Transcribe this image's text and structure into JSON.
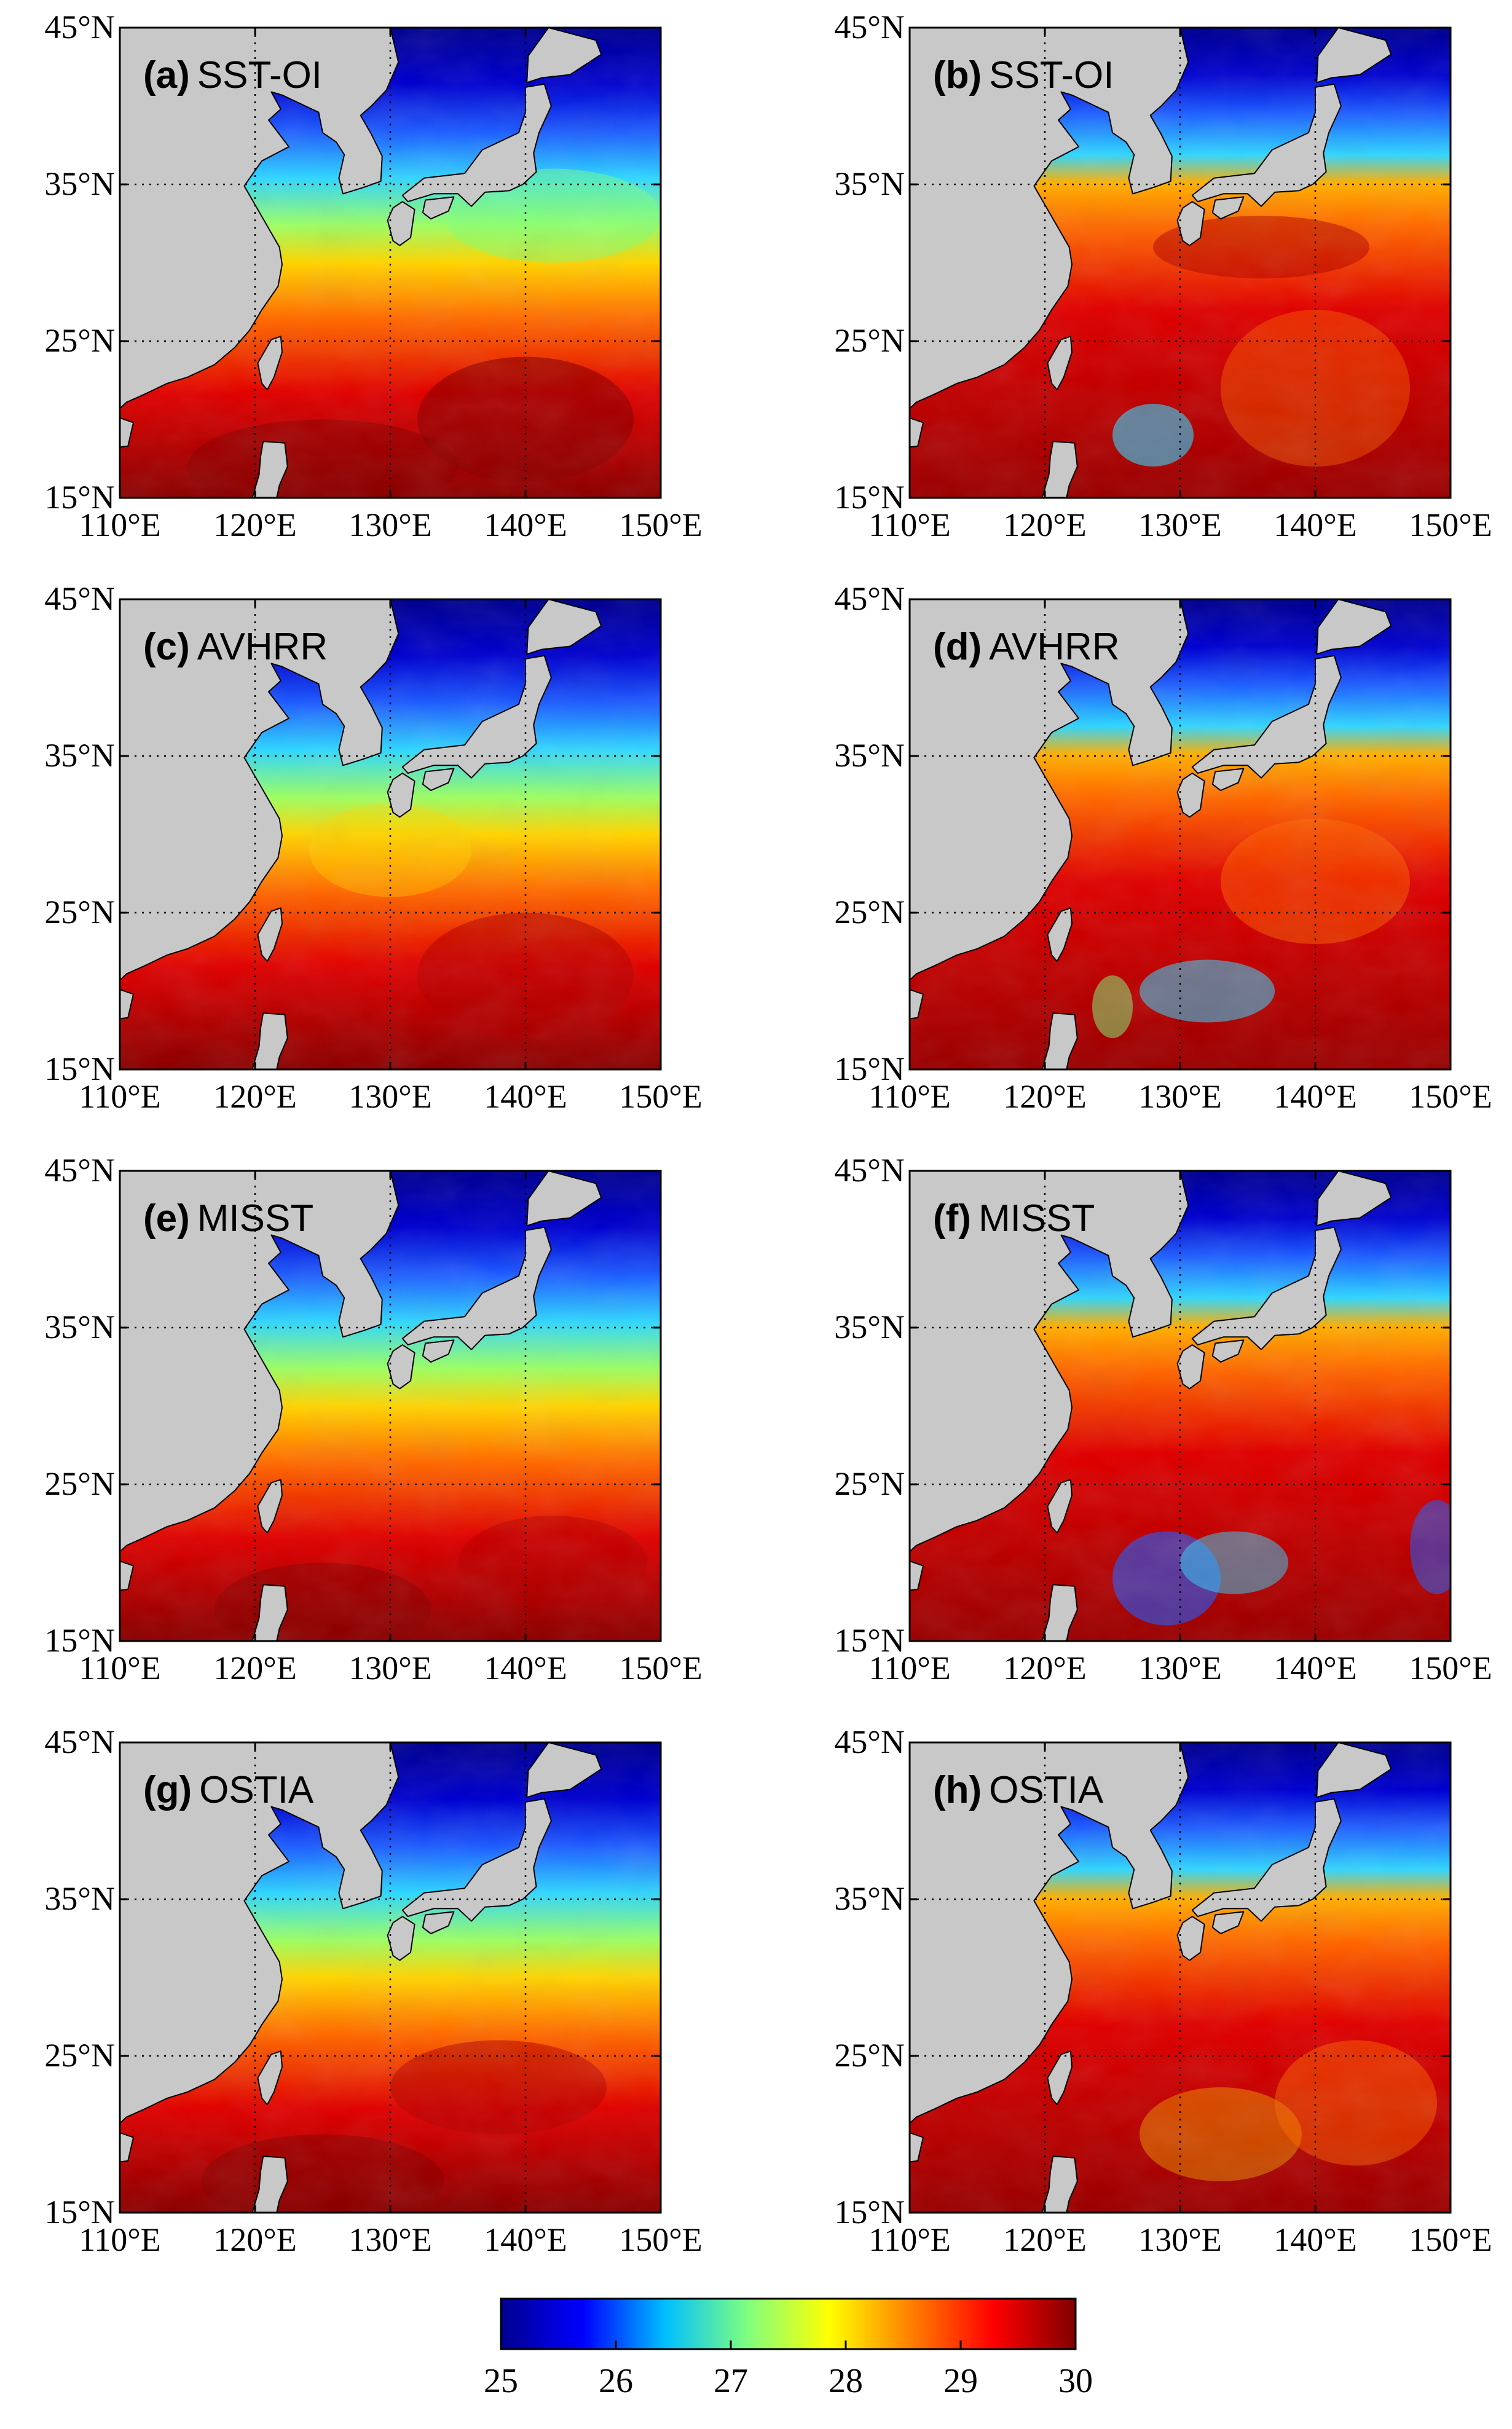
{
  "figure": {
    "panels": [
      {
        "id": "a",
        "tag": "(a)",
        "dataset": "SST-OI"
      },
      {
        "id": "b",
        "tag": "(b)",
        "dataset": "SST-OI"
      },
      {
        "id": "c",
        "tag": "(c)",
        "dataset": "AVHRR"
      },
      {
        "id": "d",
        "tag": "(d)",
        "dataset": "AVHRR"
      },
      {
        "id": "e",
        "tag": "(e)",
        "dataset": "MISST"
      },
      {
        "id": "f",
        "tag": "(f)",
        "dataset": "MISST"
      },
      {
        "id": "g",
        "tag": "(g)",
        "dataset": "OSTIA"
      },
      {
        "id": "h",
        "tag": "(h)",
        "dataset": "OSTIA"
      }
    ],
    "lat_ticks": [
      "45°N",
      "35°N",
      "25°N",
      "15°N"
    ],
    "lon_ticks": [
      "110°E",
      "120°E",
      "130°E",
      "140°E",
      "150°E"
    ],
    "extent": {
      "lon_min": 110,
      "lon_max": 150,
      "lat_min": 15,
      "lat_max": 45
    },
    "land_color": "#c8c8c8",
    "colorbar": {
      "ticks": [
        "25",
        "26",
        "27",
        "28",
        "29",
        "30"
      ],
      "min": 25,
      "max": 30,
      "colormap": "jet",
      "colors": [
        "#00008f",
        "#0000ff",
        "#00bfff",
        "#7fff7f",
        "#ffff00",
        "#ff7f00",
        "#ff0000",
        "#800000"
      ]
    }
  }
}
